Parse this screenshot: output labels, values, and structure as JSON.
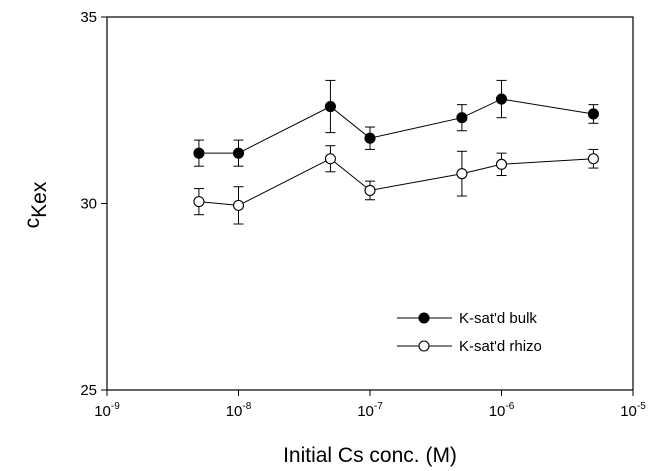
{
  "chart_data": {
    "type": "scatter",
    "title": "",
    "xlabel": "Initial Cs conc. (M)",
    "ylabel": {
      "base": "c",
      "subscript": "Kex"
    },
    "x_scale": "log",
    "xlim": [
      1e-09,
      1e-05
    ],
    "ylim": [
      25,
      35
    ],
    "x_ticks": [
      {
        "value": 1e-09,
        "base": "10",
        "exp": "-9"
      },
      {
        "value": 1e-08,
        "base": "10",
        "exp": "-8"
      },
      {
        "value": 1e-07,
        "base": "10",
        "exp": "-7"
      },
      {
        "value": 1e-06,
        "base": "10",
        "exp": "-6"
      },
      {
        "value": 1e-05,
        "base": "10",
        "exp": "-5"
      }
    ],
    "y_ticks": [
      {
        "value": 25,
        "label": "25"
      },
      {
        "value": 30,
        "label": "30"
      },
      {
        "value": 35,
        "label": "35"
      }
    ],
    "x": [
      5e-09,
      1e-08,
      5e-08,
      1e-07,
      5e-07,
      1e-06,
      5e-06
    ],
    "series": [
      {
        "name": "K-sat'd bulk",
        "marker": "filled-circle",
        "color": "#000000",
        "values": [
          31.35,
          31.35,
          32.6,
          31.75,
          32.3,
          32.8,
          32.4
        ],
        "errors": [
          0.35,
          0.35,
          0.7,
          0.3,
          0.35,
          0.5,
          0.25
        ]
      },
      {
        "name": "K-sat'd rhizo",
        "marker": "open-circle",
        "color": "#000000",
        "values": [
          30.05,
          29.95,
          31.2,
          30.35,
          30.8,
          31.05,
          31.2
        ],
        "errors": [
          0.35,
          0.5,
          0.35,
          0.25,
          0.6,
          0.3,
          0.25
        ]
      }
    ],
    "grid": false,
    "legend": "bottom-right"
  }
}
